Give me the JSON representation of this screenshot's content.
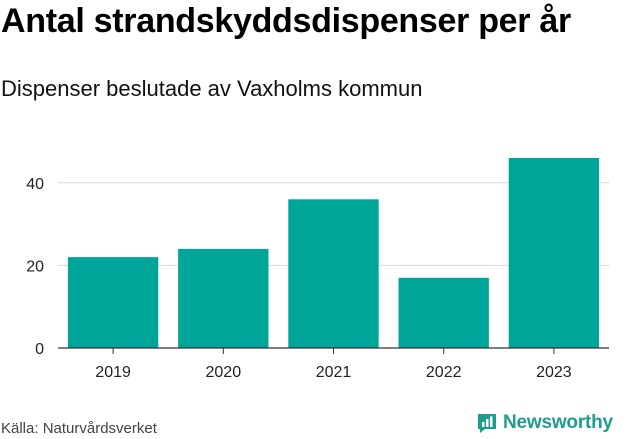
{
  "title": "Antal strandskyddsdispenser per år",
  "subtitle": "Dispenser beslutade av Vaxholms kommun",
  "source": "Källa: Naturvårdsverket",
  "logo": {
    "text": "Newsworthy",
    "icon": "bar-chart-speech-bubble-icon"
  },
  "colors": {
    "bar": "#00a59a",
    "grid": "#d9d9d9",
    "axis": "#333333",
    "brand": "#1d9e8c"
  },
  "chart_data": {
    "type": "bar",
    "title": "Antal strandskyddsdispenser per år",
    "subtitle": "Dispenser beslutade av Vaxholms kommun",
    "categories": [
      "2019",
      "2020",
      "2021",
      "2022",
      "2023"
    ],
    "values": [
      22,
      24,
      36,
      17,
      46
    ],
    "xlabel": "",
    "ylabel": "",
    "ylim": [
      0,
      46
    ],
    "yticks": [
      0,
      20,
      40
    ],
    "grid": true,
    "legend": "none"
  }
}
